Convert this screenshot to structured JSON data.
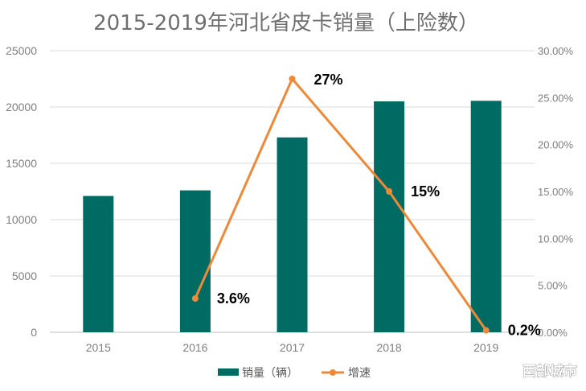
{
  "chart_data": {
    "type": "bar+line",
    "title": "2015-2019年河北省皮卡销量（上险数）",
    "categories": [
      "2015",
      "2016",
      "2017",
      "2018",
      "2019"
    ],
    "y_left": {
      "min": 0,
      "max": 25000,
      "step": 5000,
      "ticks": [
        "0",
        "5000",
        "10000",
        "15000",
        "20000",
        "25000"
      ]
    },
    "y_right": {
      "min": 0,
      "max": 0.3,
      "step": 0.05,
      "ticks": [
        "0.00%",
        "5.00%",
        "10.00%",
        "15.00%",
        "20.00%",
        "25.00%",
        "30.00%"
      ]
    },
    "series": [
      {
        "name": "销量（辆）",
        "type": "bar",
        "axis": "left",
        "color": "#006b63",
        "values": [
          12100,
          12600,
          17300,
          20500,
          20550
        ]
      },
      {
        "name": "增速",
        "type": "line",
        "axis": "right",
        "color": "#ed8a3a",
        "values": [
          null,
          0.036,
          0.27,
          0.15,
          0.002
        ],
        "labels": [
          null,
          "3.6%",
          "27%",
          "15%",
          "0.2%"
        ]
      }
    ],
    "grid": true,
    "legend_position": "bottom"
  },
  "watermark": "西部城市"
}
